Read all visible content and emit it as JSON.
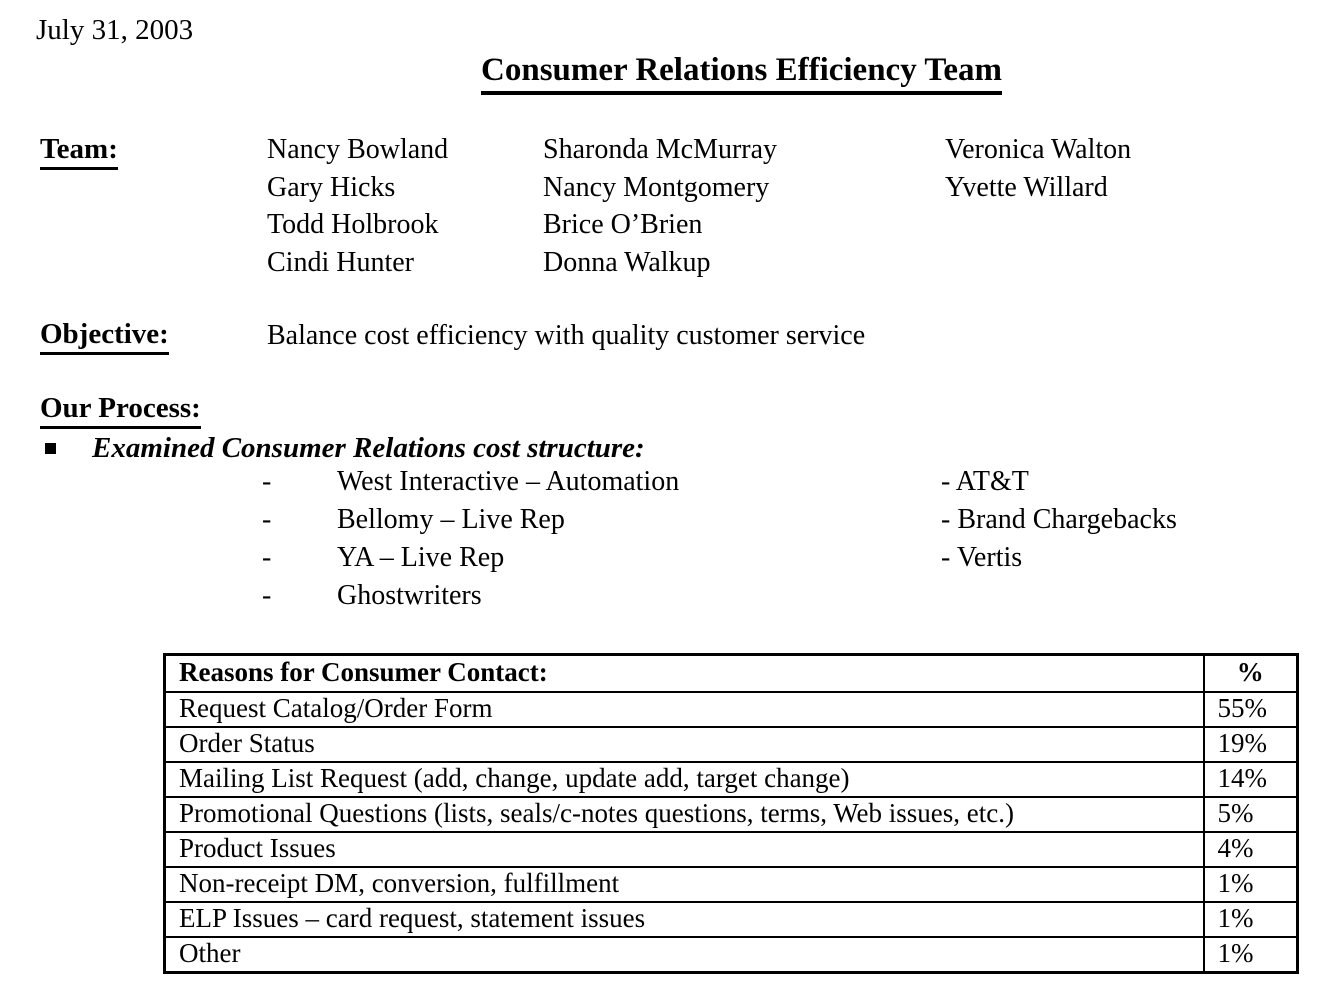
{
  "page": {
    "date": "July 31, 2003",
    "title": "Consumer Relations Efficiency Team"
  },
  "team": {
    "label": "Team:",
    "columns": [
      [
        "Nancy Bowland",
        "Gary Hicks",
        "Todd Holbrook",
        "Cindi Hunter"
      ],
      [
        "Sharonda McMurray",
        "Nancy Montgomery",
        "Brice O’Brien",
        "Donna Walkup"
      ],
      [
        "Veronica Walton",
        "Yvette Willard"
      ]
    ]
  },
  "objective": {
    "label": "Objective:",
    "text": "Balance cost efficiency with quality customer service"
  },
  "process": {
    "label": "Our Process:",
    "bullet_icon": "black-square",
    "bullet_text": "Examined Consumer Relations cost structure:",
    "dash_marker": "-",
    "cost_items": [
      "West Interactive – Automation",
      "Bellomy – Live Rep",
      "YA – Live Rep",
      "Ghostwriters"
    ],
    "vendor_items": [
      "- AT&T",
      "- Brand Chargebacks",
      "- Vertis"
    ]
  },
  "table": {
    "headers": [
      "Reasons for Consumer Contact:",
      "%"
    ],
    "rows": [
      [
        "Request Catalog/Order Form",
        "55%"
      ],
      [
        "Order Status",
        "19%"
      ],
      [
        "Mailing List Request (add, change, update add, target change)",
        "14%"
      ],
      [
        "Promotional Questions (lists, seals/c-notes questions, terms, Web issues, etc.)",
        "5%"
      ],
      [
        "Product Issues",
        "4%"
      ],
      [
        "Non-receipt DM, conversion, fulfillment",
        "1%"
      ],
      [
        "ELP Issues – card request, statement issues",
        "1%"
      ],
      [
        "Other",
        "1%"
      ]
    ]
  }
}
